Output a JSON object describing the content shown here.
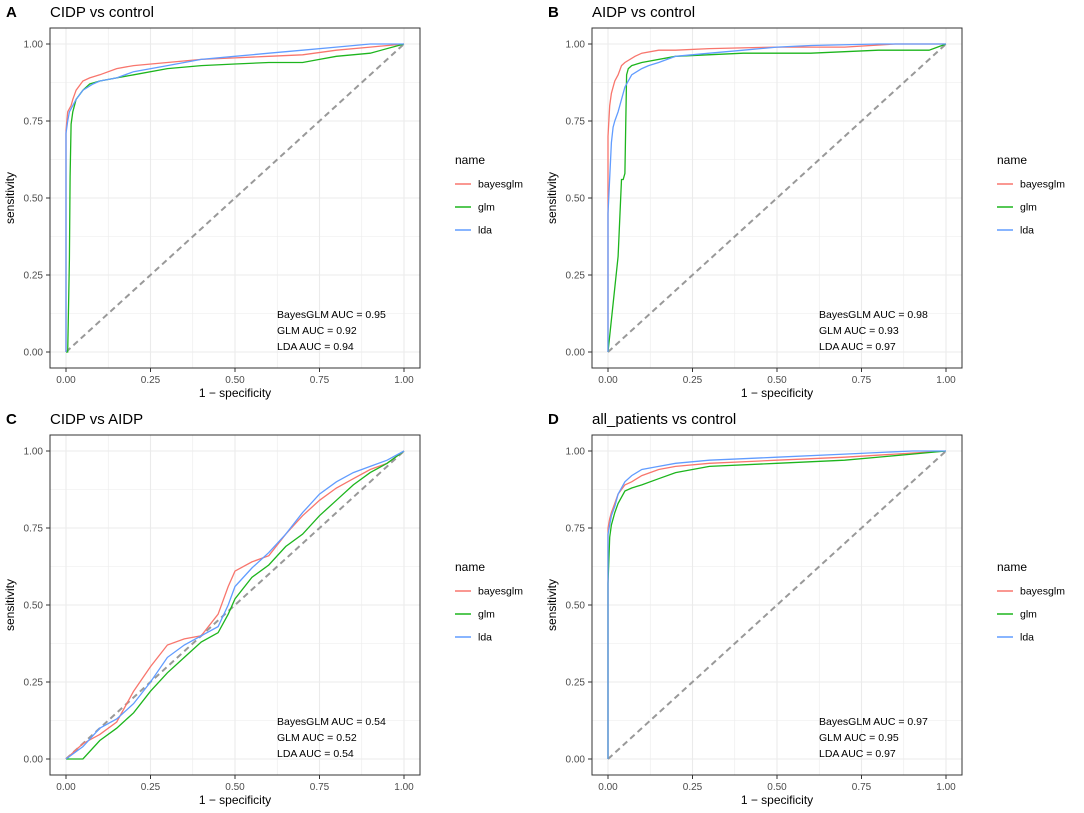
{
  "colors": {
    "bayesglm": "#F8766D",
    "glm": "#1DB51D",
    "lda": "#619CFF",
    "diagonal": "#999999",
    "grid": "#EBEBEB",
    "panel_border": "#333333"
  },
  "chart_data": [
    {
      "type": "line",
      "panel_letter": "A",
      "title": "CIDP vs control",
      "xlabel": "1 − specificity",
      "ylabel": "sensitivity",
      "xlim": [
        0,
        1
      ],
      "ylim": [
        0,
        1
      ],
      "x_ticks": [
        "0.00",
        "0.25",
        "0.50",
        "0.75",
        "1.00"
      ],
      "y_ticks": [
        "0.00",
        "0.25",
        "0.50",
        "0.75",
        "1.00"
      ],
      "grid": true,
      "legend": {
        "title": "name",
        "position": "right",
        "entries": [
          "bayesglm",
          "glm",
          "lda"
        ]
      },
      "annotations": [
        "BayesGLM AUC = 0.95",
        "GLM AUC = 0.92",
        "LDA AUC = 0.94"
      ],
      "series": [
        {
          "name": "bayesglm",
          "color": "#F8766D",
          "x": [
            0,
            0,
            0.005,
            0.01,
            0.015,
            0.02,
            0.03,
            0.05,
            0.07,
            0.1,
            0.15,
            0.2,
            0.3,
            0.4,
            0.5,
            0.6,
            0.7,
            0.8,
            0.9,
            1.0
          ],
          "y": [
            0,
            0.72,
            0.78,
            0.79,
            0.8,
            0.82,
            0.85,
            0.88,
            0.89,
            0.9,
            0.92,
            0.93,
            0.94,
            0.95,
            0.955,
            0.96,
            0.965,
            0.98,
            0.99,
            1.0
          ]
        },
        {
          "name": "glm",
          "color": "#1DB51D",
          "x": [
            0,
            0.005,
            0.01,
            0.012,
            0.015,
            0.02,
            0.03,
            0.05,
            0.07,
            0.1,
            0.15,
            0.2,
            0.3,
            0.4,
            0.5,
            0.6,
            0.7,
            0.75,
            0.8,
            0.9,
            1.0
          ],
          "y": [
            0,
            0.0,
            0.3,
            0.57,
            0.74,
            0.78,
            0.82,
            0.85,
            0.87,
            0.88,
            0.89,
            0.9,
            0.92,
            0.93,
            0.935,
            0.94,
            0.94,
            0.95,
            0.96,
            0.97,
            1.0
          ]
        },
        {
          "name": "lda",
          "color": "#619CFF",
          "x": [
            0,
            0,
            0.005,
            0.01,
            0.02,
            0.03,
            0.05,
            0.08,
            0.1,
            0.15,
            0.2,
            0.3,
            0.4,
            0.5,
            0.6,
            0.7,
            0.8,
            0.9,
            1.0
          ],
          "y": [
            0,
            0.71,
            0.75,
            0.78,
            0.8,
            0.82,
            0.85,
            0.87,
            0.88,
            0.89,
            0.91,
            0.93,
            0.95,
            0.96,
            0.97,
            0.98,
            0.99,
            1.0,
            1.0
          ]
        }
      ]
    },
    {
      "type": "line",
      "panel_letter": "B",
      "title": "AIDP vs control",
      "xlabel": "1 − specificity",
      "ylabel": "sensitivity",
      "xlim": [
        0,
        1
      ],
      "ylim": [
        0,
        1
      ],
      "x_ticks": [
        "0.00",
        "0.25",
        "0.50",
        "0.75",
        "1.00"
      ],
      "y_ticks": [
        "0.00",
        "0.25",
        "0.50",
        "0.75",
        "1.00"
      ],
      "grid": true,
      "legend": {
        "title": "name",
        "position": "right",
        "entries": [
          "bayesglm",
          "glm",
          "lda"
        ]
      },
      "annotations": [
        "BayesGLM AUC = 0.98",
        "GLM AUC = 0.93",
        "LDA AUC = 0.97"
      ],
      "series": [
        {
          "name": "bayesglm",
          "color": "#F8766D",
          "x": [
            0,
            0,
            0.005,
            0.01,
            0.015,
            0.02,
            0.03,
            0.04,
            0.05,
            0.08,
            0.1,
            0.15,
            0.2,
            0.3,
            0.5,
            0.7,
            0.85,
            1.0
          ],
          "y": [
            0,
            0.7,
            0.8,
            0.84,
            0.86,
            0.88,
            0.9,
            0.93,
            0.94,
            0.96,
            0.97,
            0.98,
            0.98,
            0.985,
            0.99,
            0.99,
            1.0,
            1.0
          ]
        },
        {
          "name": "glm",
          "color": "#1DB51D",
          "x": [
            0,
            0.03,
            0.04,
            0.045,
            0.05,
            0.055,
            0.06,
            0.07,
            0.1,
            0.2,
            0.4,
            0.6,
            0.8,
            0.95,
            1.0
          ],
          "y": [
            0,
            0.31,
            0.56,
            0.56,
            0.58,
            0.9,
            0.92,
            0.93,
            0.94,
            0.96,
            0.97,
            0.97,
            0.98,
            0.98,
            1.0
          ]
        },
        {
          "name": "lda",
          "color": "#619CFF",
          "x": [
            0,
            0,
            0.01,
            0.015,
            0.02,
            0.03,
            0.05,
            0.07,
            0.1,
            0.12,
            0.15,
            0.2,
            0.3,
            0.4,
            0.5,
            0.6,
            0.8,
            1.0
          ],
          "y": [
            0,
            0.45,
            0.68,
            0.73,
            0.75,
            0.78,
            0.86,
            0.9,
            0.92,
            0.93,
            0.94,
            0.96,
            0.97,
            0.98,
            0.99,
            0.995,
            1.0,
            1.0
          ]
        }
      ]
    },
    {
      "type": "line",
      "panel_letter": "C",
      "title": "CIDP vs AIDP",
      "xlabel": "1 − specificity",
      "ylabel": "sensitivity",
      "xlim": [
        0,
        1
      ],
      "ylim": [
        0,
        1
      ],
      "x_ticks": [
        "0.00",
        "0.25",
        "0.50",
        "0.75",
        "1.00"
      ],
      "y_ticks": [
        "0.00",
        "0.25",
        "0.50",
        "0.75",
        "1.00"
      ],
      "grid": true,
      "legend": {
        "title": "name",
        "position": "right",
        "entries": [
          "bayesglm",
          "glm",
          "lda"
        ]
      },
      "annotations": [
        "BayesGLM AUC = 0.54",
        "GLM AUC = 0.52",
        "LDA AUC = 0.54"
      ],
      "series": [
        {
          "name": "bayesglm",
          "color": "#F8766D",
          "x": [
            0,
            0.05,
            0.1,
            0.15,
            0.2,
            0.25,
            0.3,
            0.35,
            0.4,
            0.45,
            0.48,
            0.5,
            0.55,
            0.6,
            0.65,
            0.7,
            0.75,
            0.8,
            0.85,
            0.9,
            0.95,
            1.0
          ],
          "y": [
            0,
            0.05,
            0.08,
            0.12,
            0.22,
            0.3,
            0.37,
            0.39,
            0.4,
            0.47,
            0.56,
            0.61,
            0.64,
            0.66,
            0.73,
            0.79,
            0.84,
            0.88,
            0.91,
            0.94,
            0.96,
            1.0
          ]
        },
        {
          "name": "glm",
          "color": "#1DB51D",
          "x": [
            0,
            0.05,
            0.1,
            0.15,
            0.2,
            0.25,
            0.3,
            0.35,
            0.4,
            0.45,
            0.48,
            0.5,
            0.55,
            0.6,
            0.65,
            0.7,
            0.75,
            0.8,
            0.85,
            0.9,
            0.95,
            1.0
          ],
          "y": [
            0,
            0.0,
            0.06,
            0.1,
            0.15,
            0.22,
            0.28,
            0.33,
            0.38,
            0.41,
            0.47,
            0.52,
            0.59,
            0.63,
            0.69,
            0.73,
            0.79,
            0.84,
            0.89,
            0.93,
            0.96,
            1.0
          ]
        },
        {
          "name": "lda",
          "color": "#619CFF",
          "x": [
            0,
            0.05,
            0.1,
            0.15,
            0.2,
            0.25,
            0.3,
            0.35,
            0.4,
            0.45,
            0.48,
            0.5,
            0.55,
            0.6,
            0.65,
            0.7,
            0.75,
            0.8,
            0.85,
            0.9,
            0.95,
            1.0
          ],
          "y": [
            0,
            0.04,
            0.1,
            0.13,
            0.18,
            0.25,
            0.33,
            0.37,
            0.4,
            0.43,
            0.5,
            0.56,
            0.62,
            0.67,
            0.73,
            0.8,
            0.86,
            0.9,
            0.93,
            0.95,
            0.97,
            1.0
          ]
        }
      ]
    },
    {
      "type": "line",
      "panel_letter": "D",
      "title": "all_patients vs control",
      "xlabel": "1 − specificity",
      "ylabel": "sensitivity",
      "xlim": [
        0,
        1
      ],
      "ylim": [
        0,
        1
      ],
      "x_ticks": [
        "0.00",
        "0.25",
        "0.50",
        "0.75",
        "1.00"
      ],
      "y_ticks": [
        "0.00",
        "0.25",
        "0.50",
        "0.75",
        "1.00"
      ],
      "grid": true,
      "legend": {
        "title": "name",
        "position": "right",
        "entries": [
          "bayesglm",
          "glm",
          "lda"
        ]
      },
      "annotations": [
        "BayesGLM AUC = 0.97",
        "GLM AUC = 0.95",
        "LDA AUC = 0.97"
      ],
      "series": [
        {
          "name": "bayesglm",
          "color": "#F8766D",
          "x": [
            0,
            0,
            0.005,
            0.01,
            0.02,
            0.03,
            0.05,
            0.07,
            0.1,
            0.15,
            0.2,
            0.3,
            0.5,
            0.7,
            0.85,
            1.0
          ],
          "y": [
            0,
            0.75,
            0.78,
            0.8,
            0.83,
            0.86,
            0.89,
            0.9,
            0.92,
            0.94,
            0.95,
            0.96,
            0.97,
            0.98,
            0.99,
            1.0
          ]
        },
        {
          "name": "glm",
          "color": "#1DB51D",
          "x": [
            0,
            0,
            0.005,
            0.01,
            0.02,
            0.03,
            0.05,
            0.07,
            0.1,
            0.15,
            0.2,
            0.3,
            0.5,
            0.7,
            0.9,
            1.0
          ],
          "y": [
            0,
            0.57,
            0.72,
            0.76,
            0.8,
            0.83,
            0.87,
            0.88,
            0.89,
            0.91,
            0.93,
            0.95,
            0.96,
            0.97,
            0.99,
            1.0
          ]
        },
        {
          "name": "lda",
          "color": "#619CFF",
          "x": [
            0,
            0,
            0.005,
            0.01,
            0.02,
            0.03,
            0.05,
            0.07,
            0.1,
            0.15,
            0.2,
            0.3,
            0.5,
            0.7,
            0.9,
            1.0
          ],
          "y": [
            0,
            0.73,
            0.76,
            0.79,
            0.82,
            0.86,
            0.9,
            0.92,
            0.94,
            0.95,
            0.96,
            0.97,
            0.98,
            0.99,
            1.0,
            1.0
          ]
        }
      ]
    }
  ]
}
